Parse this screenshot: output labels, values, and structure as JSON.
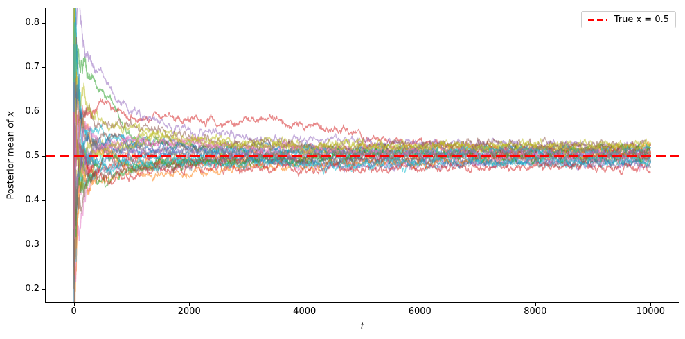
{
  "figure": {
    "background": "#ffffff",
    "spine_color": "#000000",
    "tick_color": "#000000"
  },
  "chart_data": {
    "type": "line",
    "title": "",
    "xlabel": "t",
    "ylabel": "Posterior mean of x",
    "ylabel_prefix": "Posterior mean of ",
    "ylabel_var": "x",
    "xlim": [
      -500,
      10500
    ],
    "ylim": [
      0.168,
      0.834
    ],
    "xticks": [
      0,
      2000,
      4000,
      6000,
      8000,
      10000
    ],
    "yticks": [
      0.2,
      0.3,
      0.4,
      0.5,
      0.6,
      0.7,
      0.8
    ],
    "ytick_decimals": 1,
    "grid": false,
    "legend": {
      "position": "upper right",
      "entries": [
        {
          "label": "True x = 0.5",
          "color": "#ff0000",
          "linestyle": "dashed"
        }
      ]
    },
    "reference_line": {
      "y": 0.5,
      "color": "#ff0000",
      "linestyle": "dashed",
      "linewidth": 3,
      "dash": [
        14,
        7
      ]
    },
    "traces": {
      "count": 30,
      "alpha": 0.55,
      "linewidth": 1.3,
      "x_range": [
        0,
        10000
      ],
      "y_start_extremes": [
        0.203,
        0.81
      ],
      "y_final_band": [
        0.48,
        0.53
      ],
      "palette": [
        "#1f77b4",
        "#ff7f0e",
        "#2ca02c",
        "#d62728",
        "#9467bd",
        "#8c564b",
        "#e377c2",
        "#7f7f7f",
        "#bcbd22",
        "#17becf"
      ],
      "series": [
        {
          "name": "trace-1",
          "seed": 101,
          "anchors": [
            [
              40,
              0.7
            ],
            [
              800,
              0.55
            ],
            [
              10000,
              0.505
            ]
          ]
        },
        {
          "name": "trace-2",
          "seed": 102,
          "anchors": [
            [
              40,
              0.3
            ],
            [
              2000,
              0.52
            ],
            [
              10000,
              0.53
            ]
          ]
        },
        {
          "name": "trace-3",
          "seed": 103,
          "anchors": [
            [
              25,
              0.8
            ],
            [
              500,
              0.6
            ],
            [
              10000,
              0.497
            ]
          ]
        },
        {
          "name": "trace-4",
          "seed": 104,
          "anchors": [
            [
              30,
              0.76
            ],
            [
              600,
              0.645
            ],
            [
              3500,
              0.575
            ],
            [
              6500,
              0.46
            ],
            [
              10000,
              0.49
            ]
          ]
        },
        {
          "name": "trace-5",
          "seed": 105,
          "anchors": [
            [
              60,
              0.84
            ],
            [
              450,
              0.63
            ],
            [
              2500,
              0.52
            ],
            [
              10000,
              0.51
            ]
          ]
        },
        {
          "name": "trace-6",
          "seed": 106,
          "anchors": [
            [
              40,
              0.65
            ],
            [
              1200,
              0.55
            ],
            [
              10000,
              0.515
            ]
          ]
        },
        {
          "name": "trace-7",
          "seed": 107,
          "anchors": [
            [
              40,
              0.22
            ],
            [
              700,
              0.45
            ],
            [
              10000,
              0.49
            ]
          ]
        },
        {
          "name": "trace-8",
          "seed": 108,
          "anchors": [
            [
              40,
              0.45
            ],
            [
              1500,
              0.47
            ],
            [
              10000,
              0.485
            ]
          ]
        },
        {
          "name": "trace-9",
          "seed": 109,
          "anchors": [
            [
              20,
              0.2
            ],
            [
              300,
              0.44
            ],
            [
              1500,
              0.56
            ],
            [
              10000,
              0.52
            ]
          ]
        },
        {
          "name": "trace-10",
          "seed": 110,
          "anchors": [
            [
              40,
              0.75
            ],
            [
              600,
              0.52
            ],
            [
              10000,
              0.495
            ]
          ]
        },
        {
          "name": "trace-11",
          "seed": 111,
          "anchors": [
            [
              40,
              0.35
            ],
            [
              900,
              0.48
            ],
            [
              10000,
              0.508
            ]
          ]
        },
        {
          "name": "trace-12",
          "seed": 112,
          "anchors": [
            [
              40,
              0.6
            ],
            [
              1000,
              0.46
            ],
            [
              10000,
              0.498
            ]
          ]
        },
        {
          "name": "trace-13",
          "seed": 113,
          "anchors": [
            [
              30,
              0.25
            ],
            [
              800,
              0.52
            ],
            [
              10000,
              0.512
            ]
          ]
        },
        {
          "name": "trace-14",
          "seed": 114,
          "anchors": [
            [
              40,
              0.55
            ],
            [
              1200,
              0.52
            ],
            [
              10000,
              0.5
            ]
          ]
        },
        {
          "name": "trace-15",
          "seed": 115,
          "anchors": [
            [
              40,
              0.3
            ],
            [
              600,
              0.47
            ],
            [
              10000,
              0.488
            ]
          ]
        },
        {
          "name": "trace-16",
          "seed": 116,
          "anchors": [
            [
              40,
              0.72
            ],
            [
              500,
              0.55
            ],
            [
              10000,
              0.52
            ]
          ]
        },
        {
          "name": "trace-17",
          "seed": 117,
          "anchors": [
            [
              40,
              0.4
            ],
            [
              1000,
              0.54
            ],
            [
              10000,
              0.507
            ]
          ]
        },
        {
          "name": "trace-18",
          "seed": 118,
          "anchors": [
            [
              40,
              0.68
            ],
            [
              700,
              0.5
            ],
            [
              10000,
              0.493
            ]
          ]
        },
        {
          "name": "trace-19",
          "seed": 119,
          "anchors": [
            [
              40,
              0.78
            ],
            [
              900,
              0.58
            ],
            [
              3000,
              0.53
            ],
            [
              10000,
              0.515
            ]
          ]
        },
        {
          "name": "trace-20",
          "seed": 120,
          "anchors": [
            [
              40,
              0.28
            ],
            [
              500,
              0.46
            ],
            [
              10000,
              0.502
            ]
          ]
        },
        {
          "name": "trace-21",
          "seed": 121,
          "anchors": [
            [
              40,
              0.62
            ],
            [
              800,
              0.53
            ],
            [
              10000,
              0.49
            ]
          ]
        },
        {
          "name": "trace-22",
          "seed": 122,
          "anchors": [
            [
              40,
              0.48
            ],
            [
              2000,
              0.5
            ],
            [
              10000,
              0.518
            ]
          ]
        },
        {
          "name": "trace-23",
          "seed": 123,
          "anchors": [
            [
              40,
              0.33
            ],
            [
              600,
              0.48
            ],
            [
              10000,
              0.505
            ]
          ]
        },
        {
          "name": "trace-24",
          "seed": 124,
          "anchors": [
            [
              40,
              0.58
            ],
            [
              1500,
              0.49
            ],
            [
              10000,
              0.482
            ]
          ]
        },
        {
          "name": "trace-25",
          "seed": 125,
          "anchors": [
            [
              40,
              0.74
            ],
            [
              400,
              0.5
            ],
            [
              10000,
              0.51
            ]
          ]
        },
        {
          "name": "trace-26",
          "seed": 126,
          "anchors": [
            [
              40,
              0.26
            ],
            [
              900,
              0.47
            ],
            [
              10000,
              0.496
            ]
          ]
        },
        {
          "name": "trace-27",
          "seed": 127,
          "anchors": [
            [
              40,
              0.66
            ],
            [
              1100,
              0.56
            ],
            [
              4000,
              0.51
            ],
            [
              10000,
              0.5
            ]
          ]
        },
        {
          "name": "trace-28",
          "seed": 128,
          "anchors": [
            [
              40,
              0.38
            ],
            [
              700,
              0.52
            ],
            [
              10000,
              0.513
            ]
          ]
        },
        {
          "name": "trace-29",
          "seed": 129,
          "anchors": [
            [
              40,
              0.52
            ],
            [
              1800,
              0.54
            ],
            [
              10000,
              0.525
            ]
          ]
        },
        {
          "name": "trace-30",
          "seed": 130,
          "anchors": [
            [
              40,
              0.7
            ],
            [
              600,
              0.48
            ],
            [
              10000,
              0.486
            ]
          ]
        }
      ]
    }
  }
}
